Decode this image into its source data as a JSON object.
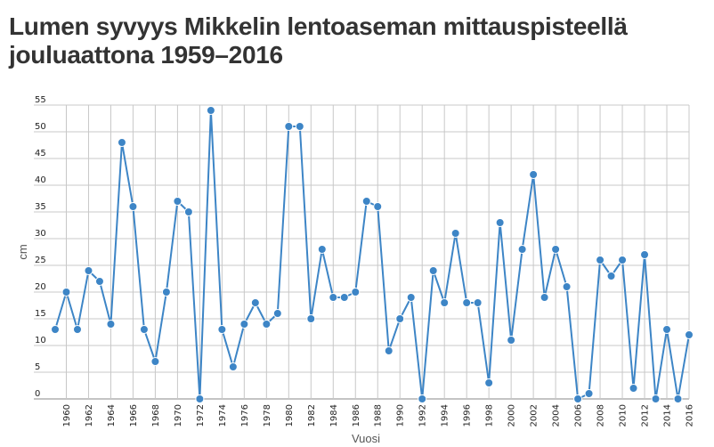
{
  "header": {
    "title_line1": "Lumen syvyys Mikkelin lentoaseman mittauspisteellä",
    "title_line2": "jouluaattona 1959–2016"
  },
  "chart_data": {
    "type": "line",
    "title": "Lumen syvyys Mikkelin lentoaseman mittauspisteellä jouluaattona 1959–2016",
    "xlabel": "Vuosi",
    "ylabel": "cm",
    "xlim": [
      1959,
      2016
    ],
    "ylim": [
      0,
      55
    ],
    "yticks": [
      0,
      5,
      10,
      15,
      20,
      25,
      30,
      35,
      40,
      45,
      50,
      55
    ],
    "xticks": [
      1960,
      1962,
      1964,
      1966,
      1968,
      1970,
      1972,
      1974,
      1976,
      1978,
      1980,
      1982,
      1984,
      1986,
      1988,
      1990,
      1992,
      1994,
      1996,
      1998,
      2000,
      2002,
      2004,
      2006,
      2008,
      2010,
      2012,
      2014,
      2016
    ],
    "grid": true,
    "color": "#3d85c6",
    "x": [
      1959,
      1960,
      1961,
      1962,
      1963,
      1964,
      1965,
      1966,
      1967,
      1968,
      1969,
      1970,
      1971,
      1972,
      1973,
      1974,
      1975,
      1976,
      1977,
      1978,
      1979,
      1980,
      1981,
      1982,
      1983,
      1984,
      1985,
      1986,
      1987,
      1988,
      1989,
      1990,
      1991,
      1992,
      1993,
      1994,
      1995,
      1996,
      1997,
      1998,
      1999,
      2000,
      2001,
      2002,
      2003,
      2004,
      2005,
      2006,
      2007,
      2008,
      2009,
      2010,
      2011,
      2012,
      2013,
      2014,
      2015,
      2016
    ],
    "values": [
      13,
      20,
      13,
      24,
      22,
      14,
      48,
      36,
      13,
      7,
      20,
      37,
      35,
      0,
      54,
      13,
      6,
      14,
      18,
      14,
      16,
      51,
      51,
      15,
      28,
      19,
      19,
      20,
      37,
      36,
      9,
      15,
      19,
      0,
      24,
      18,
      31,
      18,
      18,
      3,
      33,
      11,
      28,
      42,
      19,
      28,
      21,
      0,
      1,
      26,
      23,
      26,
      2,
      27,
      0,
      13,
      0,
      12
    ]
  }
}
